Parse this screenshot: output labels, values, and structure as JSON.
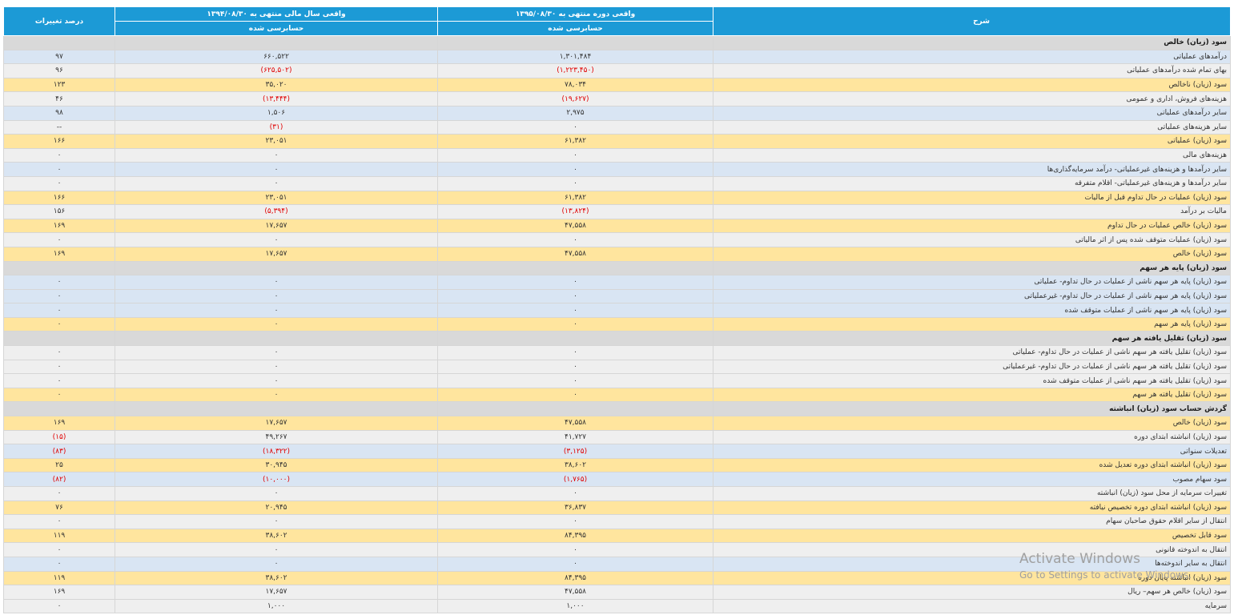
{
  "header": {
    "desc": "شرح",
    "col1_title": "واقعی دوره منتهی به ۱۳۹۵/۰۸/۳۰",
    "col1_sub": "حسابرسی شده",
    "col2_title": "واقعی سال مالی منتهی به ۱۳۹۴/۰۸/۳۰",
    "col2_sub": "حسابرسی شده",
    "pct": "درصد تغییرات"
  },
  "rows": [
    {
      "kind": "section",
      "label": "سود (زیان) خالص"
    },
    {
      "kind": "blue",
      "label": "درآمدهای عملیاتی",
      "v1": "۱,۳۰۱,۴۸۴",
      "v2": "۶۶۰,۵۲۲",
      "pct": "۹۷"
    },
    {
      "kind": "gray",
      "label": "بهای تمام شده درآمدهای عملیاتی",
      "v1": "(۱,۲۲۳,۴۵۰)",
      "v2": "(۶۲۵,۵۰۲)",
      "pct": "۹۶",
      "neg1": true,
      "neg2": true
    },
    {
      "kind": "yellow",
      "label": "سود (زیان) ناخالص",
      "v1": "۷۸,۰۳۴",
      "v2": "۳۵,۰۲۰",
      "pct": "۱۲۳"
    },
    {
      "kind": "gray",
      "label": "هزینه‌های فروش، اداری و عمومی",
      "v1": "(۱۹,۶۲۷)",
      "v2": "(۱۳,۴۴۴)",
      "pct": "۴۶",
      "neg1": true,
      "neg2": true
    },
    {
      "kind": "blue",
      "label": "سایر درآمدهای عملیاتی",
      "v1": "۲,۹۷۵",
      "v2": "۱,۵۰۶",
      "pct": "۹۸"
    },
    {
      "kind": "gray",
      "label": "سایر هزینه‌های عملیاتی",
      "v1": "۰",
      "v2": "(۳۱)",
      "pct": "--",
      "neg2": true
    },
    {
      "kind": "yellow",
      "label": "سود (زیان) عملیاتی",
      "v1": "۶۱,۳۸۲",
      "v2": "۲۳,۰۵۱",
      "pct": "۱۶۶"
    },
    {
      "kind": "gray",
      "label": "هزینه‌های مالی",
      "v1": "۰",
      "v2": "۰",
      "pct": "۰"
    },
    {
      "kind": "blue",
      "label": "سایر درآمدها و هزینه‌های غیرعملیاتی- درآمد سرمایه‌گذاری‌ها",
      "v1": "۰",
      "v2": "۰",
      "pct": "۰"
    },
    {
      "kind": "gray",
      "label": "سایر درآمدها و هزینه‌های غیرعملیاتی- اقلام متفرقه",
      "v1": "۰",
      "v2": "۰",
      "pct": "۰"
    },
    {
      "kind": "yellow",
      "label": "سود (زیان) عملیات در حال تداوم قبل از مالیات",
      "v1": "۶۱,۳۸۲",
      "v2": "۲۳,۰۵۱",
      "pct": "۱۶۶"
    },
    {
      "kind": "gray",
      "label": "مالیات بر درآمد",
      "v1": "(۱۳,۸۲۴)",
      "v2": "(۵,۳۹۴)",
      "pct": "۱۵۶",
      "neg1": true,
      "neg2": true
    },
    {
      "kind": "yellow",
      "label": "سود (زیان) خالص عملیات در حال تداوم",
      "v1": "۴۷,۵۵۸",
      "v2": "۱۷,۶۵۷",
      "pct": "۱۶۹"
    },
    {
      "kind": "gray",
      "label": "سود (زیان) عملیات متوقف شده پس از اثر مالیاتی",
      "v1": "۰",
      "v2": "۰",
      "pct": "۰"
    },
    {
      "kind": "yellow",
      "label": "سود (زیان) خالص",
      "v1": "۴۷,۵۵۸",
      "v2": "۱۷,۶۵۷",
      "pct": "۱۶۹"
    },
    {
      "kind": "section",
      "label": "سود (زیان) پایه هر سهم"
    },
    {
      "kind": "blue",
      "label": "سود (زیان) پایه هر سهم ناشی از عملیات در حال تداوم- عملیاتی",
      "v1": "۰",
      "v2": "۰",
      "pct": "۰"
    },
    {
      "kind": "blue",
      "label": "سود (زیان) پایه هر سهم ناشی از عملیات در حال تداوم- غیرعملیاتی",
      "v1": "۰",
      "v2": "۰",
      "pct": "۰"
    },
    {
      "kind": "blue",
      "label": "سود (زیان) پایه هر سهم ناشی از عملیات متوقف شده",
      "v1": "۰",
      "v2": "۰",
      "pct": "۰"
    },
    {
      "kind": "yellow",
      "label": "سود (زیان) پایه هر سهم",
      "v1": "۰",
      "v2": "۰",
      "pct": "۰"
    },
    {
      "kind": "section",
      "label": "سود (زیان) تقلیل یافته هر سهم"
    },
    {
      "kind": "gray",
      "label": "سود (زیان) تقلیل یافته هر سهم ناشی از عملیات در حال تداوم- عملیاتی",
      "v1": "۰",
      "v2": "۰",
      "pct": "۰"
    },
    {
      "kind": "gray",
      "label": "سود (زیان) تقلیل یافته هر سهم ناشی از عملیات در حال تداوم- غیرعملیاتی",
      "v1": "۰",
      "v2": "۰",
      "pct": "۰"
    },
    {
      "kind": "gray",
      "label": "سود (زیان) تقلیل یافته هر سهم ناشی از عملیات متوقف شده",
      "v1": "۰",
      "v2": "۰",
      "pct": "۰"
    },
    {
      "kind": "yellow",
      "label": "سود (زیان) تقلیل یافته هر سهم",
      "v1": "۰",
      "v2": "۰",
      "pct": "۰"
    },
    {
      "kind": "section",
      "label": "گردش حساب سود (زیان) انباشته"
    },
    {
      "kind": "yellow",
      "label": "سود (زیان) خالص",
      "v1": "۴۷,۵۵۸",
      "v2": "۱۷,۶۵۷",
      "pct": "۱۶۹"
    },
    {
      "kind": "gray",
      "label": "سود (زیان) انباشته ابتدای دوره",
      "v1": "۴۱,۷۲۷",
      "v2": "۴۹,۲۶۷",
      "pct": "(۱۵)",
      "negp": true
    },
    {
      "kind": "blue",
      "label": "تعدیلات سنواتی",
      "v1": "(۳,۱۲۵)",
      "v2": "(۱۸,۳۲۲)",
      "pct": "(۸۳)",
      "neg1": true,
      "neg2": true,
      "negp": true
    },
    {
      "kind": "yellow",
      "label": "سود (زیان) انباشته ابتدای دوره تعدیل شده",
      "v1": "۳۸,۶۰۲",
      "v2": "۳۰,۹۴۵",
      "pct": "۲۵"
    },
    {
      "kind": "blue",
      "label": "سود سهام مصوب",
      "v1": "(۱,۷۶۵)",
      "v2": "(۱۰,۰۰۰)",
      "pct": "(۸۲)",
      "neg1": true,
      "neg2": true,
      "negp": true
    },
    {
      "kind": "gray",
      "label": "تغییرات سرمایه از محل سود (زیان) انباشته",
      "v1": "۰",
      "v2": "۰",
      "pct": "۰"
    },
    {
      "kind": "yellow",
      "label": "سود (زیان) انباشته ابتدای دوره تخصیص نیافته",
      "v1": "۳۶,۸۳۷",
      "v2": "۲۰,۹۴۵",
      "pct": "۷۶"
    },
    {
      "kind": "gray",
      "label": "انتقال از سایر اقلام حقوق صاحبان سهام",
      "v1": "۰",
      "v2": "۰",
      "pct": "۰"
    },
    {
      "kind": "yellow",
      "label": "سود قابل تخصیص",
      "v1": "۸۴,۳۹۵",
      "v2": "۳۸,۶۰۲",
      "pct": "۱۱۹"
    },
    {
      "kind": "gray",
      "label": "انتقال به اندوخته قانونی",
      "v1": "۰",
      "v2": "۰",
      "pct": "۰"
    },
    {
      "kind": "blue",
      "label": "انتقال به سایر اندوخته‌ها",
      "v1": "۰",
      "v2": "۰",
      "pct": "۰"
    },
    {
      "kind": "yellow",
      "label": "سود (زیان) انباشته پایان دوره",
      "v1": "۸۴,۳۹۵",
      "v2": "۳۸,۶۰۲",
      "pct": "۱۱۹"
    },
    {
      "kind": "gray",
      "label": "سود (زیان) خالص هر سهم– ریال",
      "v1": "۴۷,۵۵۸",
      "v2": "۱۷,۶۵۷",
      "pct": "۱۶۹"
    },
    {
      "kind": "gray",
      "label": "سرمایه",
      "v1": "۱,۰۰۰",
      "v2": "۱,۰۰۰",
      "pct": "۰"
    }
  ],
  "watermark": {
    "line1": "Activate Windows",
    "line2": "Go to Settings to activate Windows."
  }
}
